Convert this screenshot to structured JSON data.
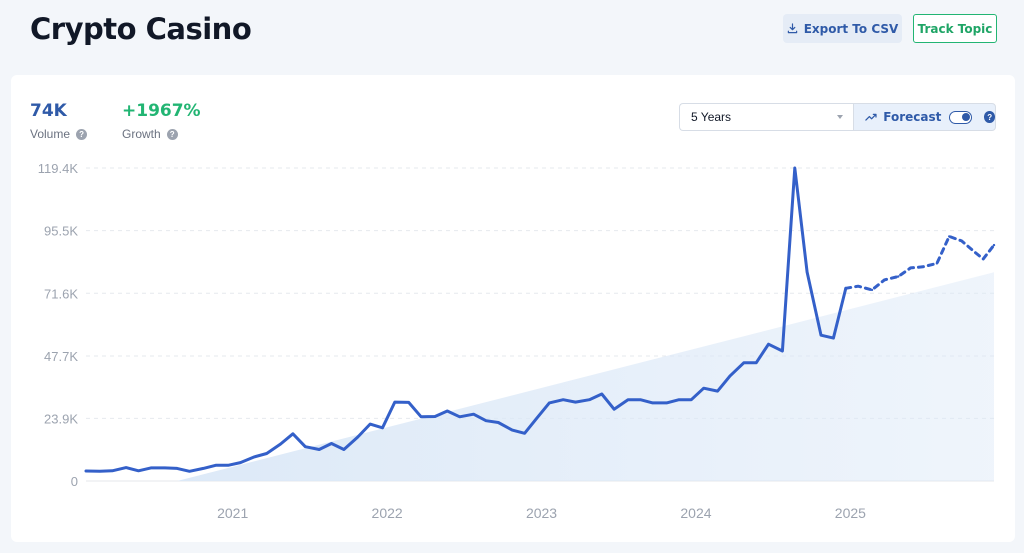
{
  "header": {
    "title": "Crypto Casino",
    "export_label": "Export To CSV",
    "track_label": "Track Topic"
  },
  "stats": {
    "volume": {
      "value": "74K",
      "label": "Volume",
      "color": "#2f5aa8"
    },
    "growth": {
      "value": "+1967%",
      "label": "Growth",
      "color": "#22b573"
    }
  },
  "controls": {
    "range_selected": "5 Years",
    "forecast_label": "Forecast",
    "forecast_on": true
  },
  "chart_data": {
    "type": "line",
    "line_color": "#3460c9",
    "trend_color": "#dbe8f7",
    "x_start": 2020.05,
    "x_end": 2025.93,
    "ylim": [
      0,
      119400
    ],
    "yticks": [
      {
        "value": 0,
        "label": "0"
      },
      {
        "value": 23900,
        "label": "23.9K"
      },
      {
        "value": 47700,
        "label": "47.7K"
      },
      {
        "value": 71600,
        "label": "71.6K"
      },
      {
        "value": 95500,
        "label": "95.5K"
      },
      {
        "value": 119400,
        "label": "119.4K"
      }
    ],
    "xticks": [
      {
        "value": 2021.0,
        "label": "2021"
      },
      {
        "value": 2022.0,
        "label": "2022"
      },
      {
        "value": 2023.0,
        "label": "2023"
      },
      {
        "value": 2024.0,
        "label": "2024"
      },
      {
        "value": 2025.0,
        "label": "2025"
      }
    ],
    "series": [
      {
        "style": "solid",
        "points": [
          [
            2020.05,
            3800
          ],
          [
            2020.14,
            3700
          ],
          [
            2020.22,
            3900
          ],
          [
            2020.31,
            5100
          ],
          [
            2020.39,
            3900
          ],
          [
            2020.47,
            5000
          ],
          [
            2020.56,
            5000
          ],
          [
            2020.64,
            4800
          ],
          [
            2020.72,
            3700
          ],
          [
            2020.81,
            4800
          ],
          [
            2020.89,
            6000
          ],
          [
            2020.97,
            6000
          ],
          [
            2021.05,
            7000
          ],
          [
            2021.14,
            9200
          ],
          [
            2021.22,
            10500
          ],
          [
            2021.31,
            14100
          ],
          [
            2021.39,
            18000
          ],
          [
            2021.47,
            13100
          ],
          [
            2021.56,
            12000
          ],
          [
            2021.64,
            14300
          ],
          [
            2021.72,
            12000
          ],
          [
            2021.81,
            16800
          ],
          [
            2021.89,
            21700
          ],
          [
            2021.97,
            20300
          ],
          [
            2022.05,
            30100
          ],
          [
            2022.14,
            30000
          ],
          [
            2022.22,
            24500
          ],
          [
            2022.31,
            24600
          ],
          [
            2022.39,
            26700
          ],
          [
            2022.47,
            24500
          ],
          [
            2022.56,
            25500
          ],
          [
            2022.64,
            23000
          ],
          [
            2022.72,
            22300
          ],
          [
            2022.81,
            19400
          ],
          [
            2022.89,
            18200
          ],
          [
            2022.97,
            24000
          ],
          [
            2023.05,
            29800
          ],
          [
            2023.14,
            31000
          ],
          [
            2023.22,
            30100
          ],
          [
            2023.31,
            31000
          ],
          [
            2023.39,
            33200
          ],
          [
            2023.47,
            27400
          ],
          [
            2023.56,
            31000
          ],
          [
            2023.64,
            31000
          ],
          [
            2023.72,
            29800
          ],
          [
            2023.81,
            29800
          ],
          [
            2023.89,
            31000
          ],
          [
            2023.97,
            31000
          ],
          [
            2024.05,
            35400
          ],
          [
            2024.14,
            34300
          ],
          [
            2024.22,
            40000
          ],
          [
            2024.31,
            45100
          ],
          [
            2024.39,
            45100
          ],
          [
            2024.47,
            52200
          ],
          [
            2024.56,
            49600
          ],
          [
            2024.64,
            119400
          ],
          [
            2024.72,
            79700
          ],
          [
            2024.81,
            55600
          ],
          [
            2024.89,
            54500
          ],
          [
            2024.97,
            73500
          ]
        ]
      },
      {
        "style": "dashed",
        "points": [
          [
            2024.97,
            73500
          ],
          [
            2025.05,
            74300
          ],
          [
            2025.14,
            72900
          ],
          [
            2025.22,
            76700
          ],
          [
            2025.31,
            78000
          ],
          [
            2025.39,
            81300
          ],
          [
            2025.47,
            81700
          ],
          [
            2025.56,
            83000
          ],
          [
            2025.64,
            93300
          ],
          [
            2025.72,
            91600
          ],
          [
            2025.81,
            87100
          ],
          [
            2025.86,
            84700
          ],
          [
            2025.93,
            90000
          ]
        ]
      }
    ],
    "trend_band": [
      [
        2020.64,
        0
      ],
      [
        2025.93,
        79600
      ],
      [
        2025.93,
        0
      ]
    ]
  }
}
